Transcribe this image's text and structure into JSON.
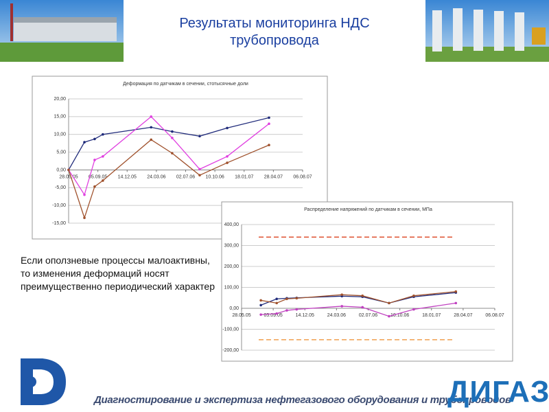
{
  "slide": {
    "title": "Результаты мониторинга НДС трубопровода",
    "text": "Если оползневые процессы малоактивны, то изменения деформаций носят преимущественно периодический характер",
    "footer": "Диагностирование и экспертиза нефтегазового оборудования и трубопроводов",
    "brand": "ДИГАЗ"
  },
  "chart_data": [
    {
      "type": "line",
      "title": "Деформация по датчикам в сечении, стотысячные доли",
      "x": [
        "2005-05-28",
        "2005-07-21",
        "2005-08-25",
        "2005-09-22",
        "2006-03-06",
        "2006-05-17",
        "2006-08-19",
        "2006-11-21",
        "2007-04-13"
      ],
      "series": [
        {
          "color": "#1f2a7a",
          "values": [
            0,
            7.8,
            8.7,
            10,
            12,
            10.8,
            9.5,
            11.8,
            14.7
          ]
        },
        {
          "color": "#e040e0",
          "values": [
            0,
            -7,
            2.8,
            3.8,
            15,
            9,
            0.2,
            3.8,
            13
          ]
        },
        {
          "color": "#a0522d",
          "values": [
            0,
            -13.5,
            -4.7,
            -3,
            8.5,
            4.7,
            -1.5,
            2,
            7
          ]
        }
      ],
      "xlim": [
        "2005-05-28",
        "2007-08-06"
      ],
      "xticks": [
        {
          "value": "2005-05-28",
          "label": "28.05.05"
        },
        {
          "value": "2005-09-05",
          "label": "05.09.05"
        },
        {
          "value": "2005-12-14",
          "label": "14.12.05"
        },
        {
          "value": "2006-03-24",
          "label": "24.03.06"
        },
        {
          "value": "2006-07-02",
          "label": "02.07.06"
        },
        {
          "value": "2006-10-10",
          "label": "10.10.06"
        },
        {
          "value": "2007-01-18",
          "label": "18.01.07"
        },
        {
          "value": "2007-04-28",
          "label": "28.04.07"
        },
        {
          "value": "2007-08-06",
          "label": "06.08.07"
        }
      ],
      "ylim": [
        -15,
        20
      ],
      "yticks": [
        {
          "value": 20,
          "label": "20,00"
        },
        {
          "value": 15,
          "label": "15,00"
        },
        {
          "value": 10,
          "label": "10,00"
        },
        {
          "value": 5,
          "label": "5,00"
        },
        {
          "value": 0,
          "label": "0,00"
        },
        {
          "value": -5,
          "label": "-5,00"
        },
        {
          "value": -10,
          "label": "-10,00"
        },
        {
          "value": -15,
          "label": "-15,00"
        }
      ],
      "grid": true
    },
    {
      "type": "line",
      "title": "Распределение напряжений по датчикам в сечении, МПа",
      "x": [
        "2005-07-28",
        "2005-09-16",
        "2005-10-18",
        "2005-11-18",
        "2006-04-10",
        "2006-06-14",
        "2006-09-06",
        "2006-11-23",
        "2007-04-05"
      ],
      "series": [
        {
          "color": "#1f2a7a",
          "values": [
            15,
            45,
            48,
            50,
            58,
            55,
            25,
            55,
            75
          ]
        },
        {
          "color": "#a0522d",
          "values": [
            38,
            25,
            45,
            48,
            65,
            60,
            25,
            60,
            80
          ]
        },
        {
          "color": "#c040c0",
          "values": [
            -30,
            -25,
            -10,
            -5,
            10,
            5,
            -38,
            -5,
            25
          ]
        }
      ],
      "reference_lines": [
        {
          "value": 340,
          "color": "#e05a3a"
        },
        {
          "value": -150,
          "color": "#f0a050"
        }
      ],
      "xlim": [
        "2005-05-28",
        "2007-08-06"
      ],
      "xticks": [
        {
          "value": "2005-05-28",
          "label": "28.05.05"
        },
        {
          "value": "2005-09-05",
          "label": "05.09.05"
        },
        {
          "value": "2005-12-14",
          "label": "14.12.05"
        },
        {
          "value": "2006-03-24",
          "label": "24.03.06"
        },
        {
          "value": "2006-07-02",
          "label": "02.07.06"
        },
        {
          "value": "2006-10-10",
          "label": "10.10.06"
        },
        {
          "value": "2007-01-18",
          "label": "18.01.07"
        },
        {
          "value": "2007-04-28",
          "label": "28.04.07"
        },
        {
          "value": "2007-08-06",
          "label": "06.08.07"
        }
      ],
      "ylim": [
        -200,
        400
      ],
      "yticks": [
        {
          "value": 400,
          "label": "400,00"
        },
        {
          "value": 300,
          "label": "300,00"
        },
        {
          "value": 200,
          "label": "200,00"
        },
        {
          "value": 100,
          "label": "100,00"
        },
        {
          "value": 0,
          "label": "0,00"
        },
        {
          "value": -100,
          "label": "-100,00"
        },
        {
          "value": -200,
          "label": "-200,00"
        }
      ],
      "grid": true
    }
  ]
}
